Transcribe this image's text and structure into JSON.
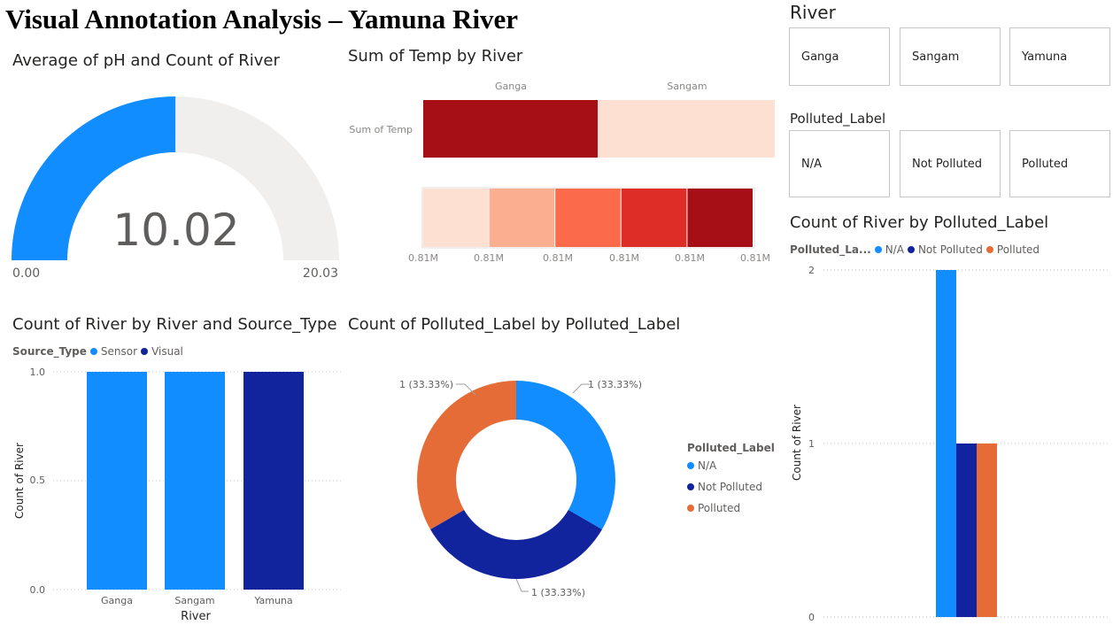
{
  "page": {
    "title": "Visual Annotation Analysis – Yamuna River"
  },
  "colors": {
    "blue": "#118DFF",
    "navy": "#12239E",
    "orange": "#E66C37",
    "gauge_bg": "#F0EFEE",
    "red_dark": "#A50F15",
    "red_light": "#FEE0D2"
  },
  "gauge": {
    "title": "Average of pH and Count of River",
    "value_label": "10.02",
    "min_label": "0.00",
    "max_label": "20.03",
    "chart_data": {
      "type": "gauge",
      "value": 10.02,
      "min": 0.0,
      "max": 20.03
    }
  },
  "heatmap": {
    "title": "Sum of Temp by River",
    "row_label": "Sum of Temp",
    "col_labels": [
      "Ganga",
      "Sangam"
    ],
    "scale_ticks": [
      "0.81M",
      "0.81M",
      "0.81M",
      "0.81M",
      "0.81M",
      "0.81M"
    ],
    "scale_colors": [
      "#FEE0D2",
      "#FCAE91",
      "#FB6A4A",
      "#DE2D26",
      "#A50F15"
    ],
    "chart_data": {
      "type": "heatmap",
      "rows": [
        "Sum of Temp"
      ],
      "columns": [
        "Ganga",
        "Sangam"
      ],
      "values": [
        [
          0.81,
          0.81
        ]
      ],
      "cell_colors": [
        "#A50F15",
        "#FEE0D2"
      ],
      "legend_ticks": [
        "0.81M",
        "0.81M",
        "0.81M",
        "0.81M",
        "0.81M",
        "0.81M"
      ]
    }
  },
  "column_chart": {
    "title": "Count of River by River and Source_Type",
    "legend_title": "Source_Type",
    "legend": [
      {
        "name": "Sensor",
        "color": "#118DFF"
      },
      {
        "name": "Visual",
        "color": "#12239E"
      }
    ],
    "y_axis_label": "Count of River",
    "x_axis_label": "River",
    "y_ticks": [
      "1.0",
      "0.5",
      "0.0"
    ],
    "chart_data": {
      "type": "bar",
      "categories": [
        "Ganga",
        "Sangam",
        "Yamuna"
      ],
      "series": [
        {
          "name": "Sensor",
          "values": [
            1,
            1,
            0
          ]
        },
        {
          "name": "Visual",
          "values": [
            0,
            0,
            1
          ]
        }
      ],
      "xlabel": "River",
      "ylabel": "Count of River",
      "ylim": [
        0,
        1
      ]
    }
  },
  "donut": {
    "title": "Count of Polluted_Label by Polluted_Label",
    "legend_title": "Polluted_Label",
    "legend": [
      {
        "name": "N/A",
        "color": "#118DFF"
      },
      {
        "name": "Not Polluted",
        "color": "#12239E"
      },
      {
        "name": "Polluted",
        "color": "#E66C37"
      }
    ],
    "slice_labels": [
      "1 (33.33%)",
      "1 (33.33%)",
      "1 (33.33%)"
    ],
    "chart_data": {
      "type": "pie",
      "labels": [
        "N/A",
        "Not Polluted",
        "Polluted"
      ],
      "values": [
        1,
        1,
        1
      ],
      "percent": [
        33.33,
        33.33,
        33.33
      ]
    }
  },
  "slicer_river": {
    "title": "River",
    "items": [
      "Ganga",
      "Sangam",
      "Yamuna"
    ]
  },
  "slicer_polluted": {
    "title": "Polluted_Label",
    "items": [
      "N/A",
      "Not Polluted",
      "Polluted"
    ]
  },
  "clustered_chart": {
    "title": "Count of River by Polluted_Label",
    "legend_title": "Polluted_La...",
    "legend": [
      {
        "name": "N/A",
        "color": "#118DFF"
      },
      {
        "name": "Not Polluted",
        "color": "#12239E"
      },
      {
        "name": "Polluted",
        "color": "#E66C37"
      }
    ],
    "y_axis_label": "Count of River",
    "y_ticks": [
      "2",
      "1",
      "0"
    ],
    "chart_data": {
      "type": "bar",
      "categories": [
        ""
      ],
      "series": [
        {
          "name": "N/A",
          "values": [
            2
          ]
        },
        {
          "name": "Not Polluted",
          "values": [
            1
          ]
        },
        {
          "name": "Polluted",
          "values": [
            1
          ]
        }
      ],
      "ylabel": "Count of River",
      "ylim": [
        0,
        2
      ]
    }
  }
}
